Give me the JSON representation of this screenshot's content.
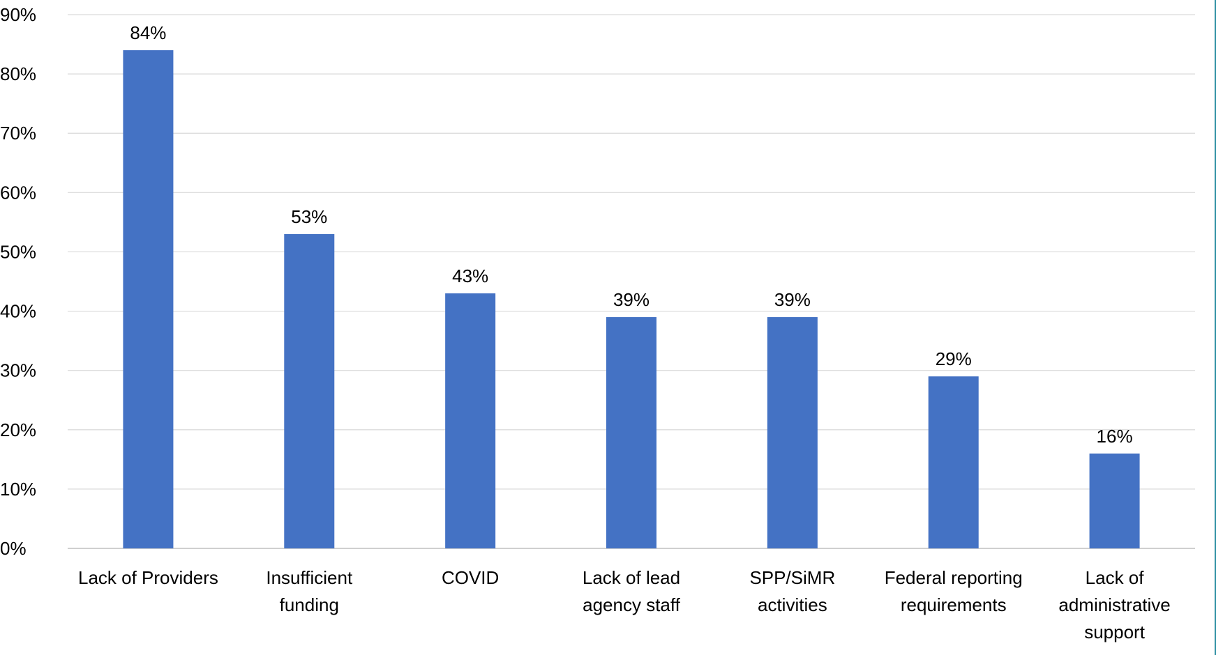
{
  "chart_data": {
    "type": "bar",
    "categories": [
      "Lack of Providers",
      "Insufficient funding",
      "COVID",
      "Lack of lead agency staff",
      "SPP/SiMR activities",
      "Federal reporting requirements",
      "Lack of administrative support"
    ],
    "category_lines": [
      [
        "Lack of Providers"
      ],
      [
        "Insufficient",
        "funding"
      ],
      [
        "COVID"
      ],
      [
        "Lack of lead",
        "agency staff"
      ],
      [
        "SPP/SiMR",
        "activities"
      ],
      [
        "Federal reporting",
        "requirements"
      ],
      [
        "Lack of",
        "administrative",
        "support"
      ]
    ],
    "values": [
      84,
      53,
      43,
      39,
      39,
      29,
      16
    ],
    "data_labels": [
      "84%",
      "53%",
      "43%",
      "39%",
      "39%",
      "29%",
      "16%"
    ],
    "ylim": [
      0,
      90
    ],
    "yticks": [
      0,
      10,
      20,
      30,
      40,
      50,
      60,
      70,
      80,
      90
    ],
    "ytick_labels": [
      "0%",
      "10%",
      "20%",
      "30%",
      "40%",
      "50%",
      "60%",
      "70%",
      "80%",
      "90%"
    ],
    "title": "",
    "xlabel": "",
    "ylabel": "",
    "grid": true,
    "legend": "none",
    "colors": {
      "bar": "#4472c4",
      "grid": "#d9d9d9",
      "axis": "#bfbfbf",
      "edge": "#2e8fa3"
    }
  }
}
